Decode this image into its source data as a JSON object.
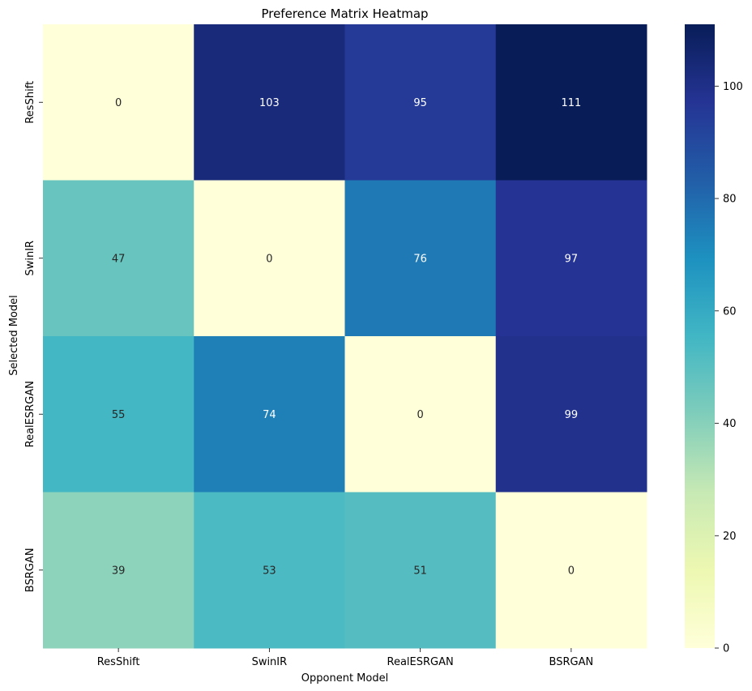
{
  "chart_data": {
    "type": "heatmap",
    "title": "Preference Matrix Heatmap",
    "xlabel": "Opponent Model",
    "ylabel": "Selected Model",
    "x_categories": [
      "ResShift",
      "SwinIR",
      "RealESRGAN",
      "BSRGAN"
    ],
    "y_categories": [
      "ResShift",
      "SwinIR",
      "RealESRGAN",
      "BSRGAN"
    ],
    "values": [
      [
        0,
        103,
        95,
        111
      ],
      [
        47,
        0,
        76,
        97
      ],
      [
        55,
        74,
        0,
        99
      ],
      [
        39,
        53,
        51,
        0
      ]
    ],
    "colormap": "YlGnBu",
    "vmin": 0,
    "vmax": 111,
    "colorbar_ticks": [
      0,
      20,
      40,
      60,
      80,
      100
    ],
    "grid": false
  }
}
